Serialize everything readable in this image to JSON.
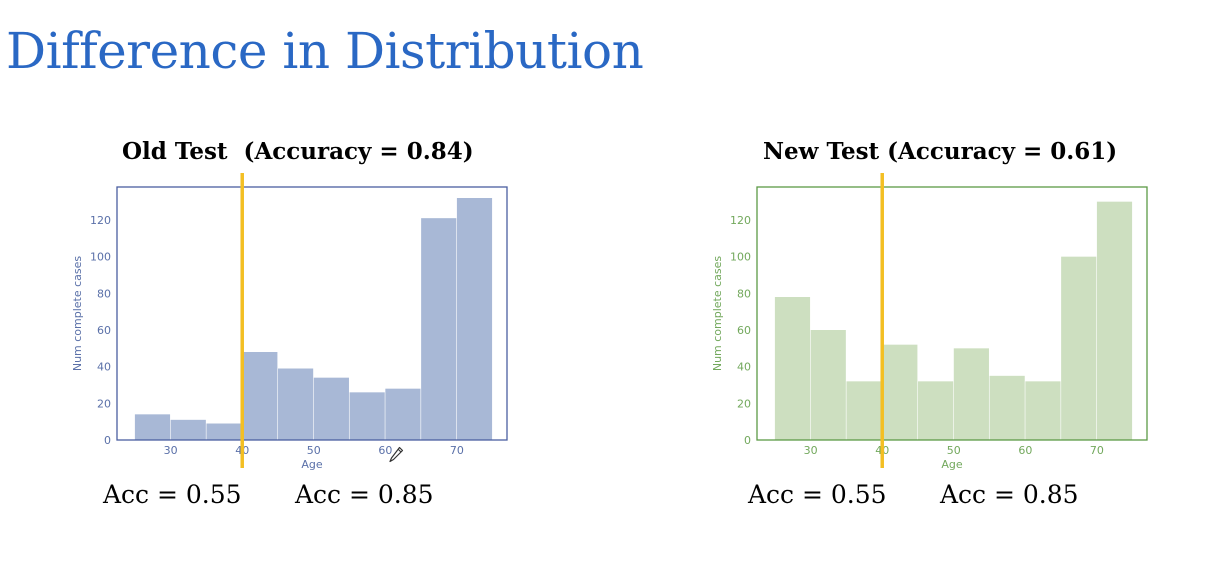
{
  "slide": {
    "title": "Difference in Distribution"
  },
  "labels": {
    "old_left": "Acc = 0.55",
    "old_right": "Acc = 0.85",
    "new_left": "Acc = 0.55",
    "new_right": "Acc = 0.85"
  },
  "icons": {
    "cursor": "pen-icon"
  },
  "chart_data": [
    {
      "type": "bar",
      "title": "Old Test  (Accuracy = 0.84)",
      "xlabel": "Age",
      "ylabel": "Num complete cases",
      "bin_edges": [
        25,
        30,
        35,
        40,
        45,
        50,
        55,
        60,
        65,
        70,
        75
      ],
      "values": [
        14,
        11,
        9,
        48,
        39,
        34,
        26,
        28,
        121,
        132
      ],
      "xlim": [
        22.5,
        77
      ],
      "ylim": [
        0,
        138
      ],
      "xticks": [
        30,
        40,
        50,
        60,
        70
      ],
      "yticks": [
        0,
        20,
        40,
        60,
        80,
        100,
        120
      ],
      "threshold": 40,
      "color": "#a8b8d6",
      "axis_color": "#4a5fa0",
      "tick_color": "#5a70a8",
      "threshold_color": "#f3bf23",
      "grid": false
    },
    {
      "type": "bar",
      "title": "New Test (Accuracy = 0.61)",
      "xlabel": "Age",
      "ylabel": "Num complete cases",
      "bin_edges": [
        25,
        30,
        35,
        40,
        45,
        50,
        55,
        60,
        65,
        70,
        75
      ],
      "values": [
        78,
        60,
        32,
        52,
        32,
        50,
        35,
        32,
        100,
        130
      ],
      "xlim": [
        22.5,
        77
      ],
      "ylim": [
        0,
        138
      ],
      "xticks": [
        30,
        40,
        50,
        60,
        70
      ],
      "yticks": [
        0,
        20,
        40,
        60,
        80,
        100,
        120
      ],
      "threshold": 40,
      "color": "#cddfc0",
      "axis_color": "#5c9a46",
      "tick_color": "#72a85c",
      "threshold_color": "#f3bf23",
      "grid": false
    }
  ]
}
